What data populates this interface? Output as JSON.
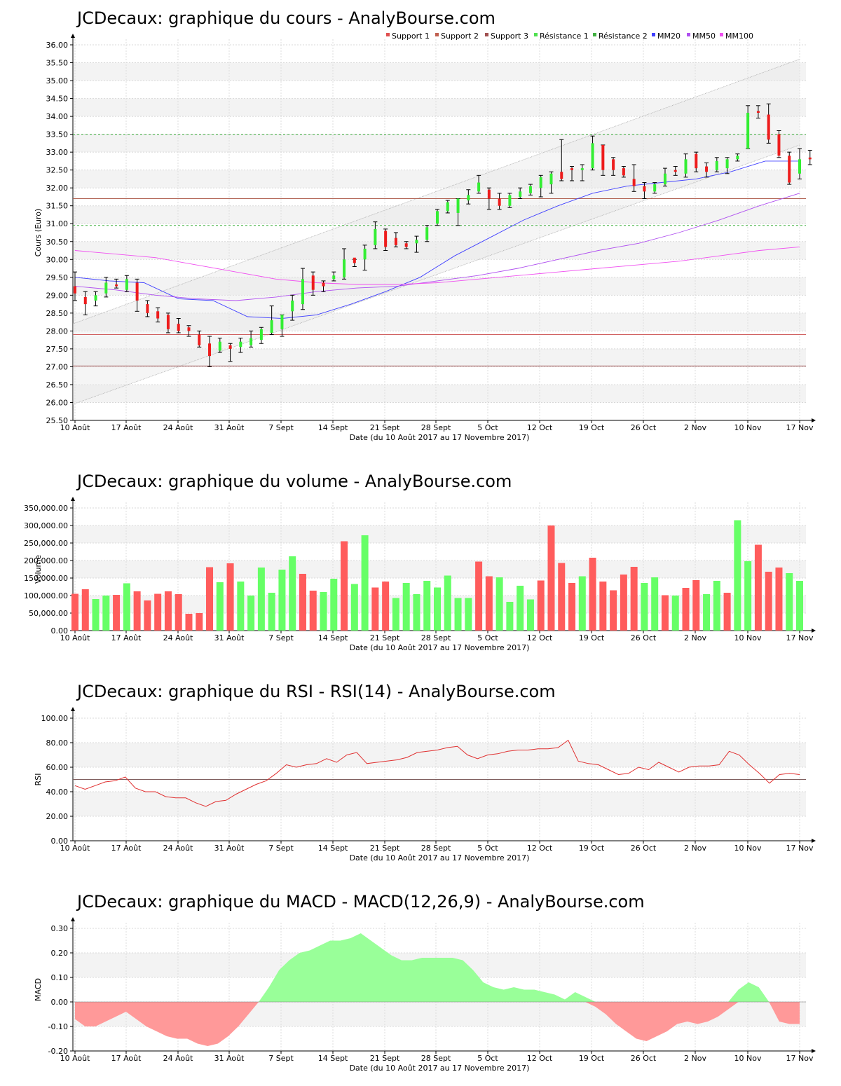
{
  "chart_data": [
    {
      "type": "candlestick",
      "title": "JCDecaux: graphique du cours - AnalyBourse.com",
      "xlabel": "Date (du 10 Août 2017 au 17 Novembre 2017)",
      "ylabel": "Cours (Euro)",
      "ylim": [
        25.5,
        36.0
      ],
      "yticks": [
        "25.50",
        "26.00",
        "26.50",
        "27.00",
        "27.50",
        "28.00",
        "28.50",
        "29.00",
        "29.50",
        "30.00",
        "30.50",
        "31.00",
        "31.50",
        "32.00",
        "32.50",
        "33.00",
        "33.50",
        "34.00",
        "34.50",
        "35.00",
        "35.50",
        "36.00"
      ],
      "xticks": [
        "10 Août",
        "17 Août",
        "24 Août",
        "31 Août",
        "7 Sept",
        "14 Sept",
        "21 Sept",
        "28 Sept",
        "5 Oct",
        "12 Oct",
        "19 Oct",
        "26 Oct",
        "2 Nov",
        "10 Nov",
        "17 Nov"
      ],
      "legend": {
        "placement": "top-right",
        "items": [
          {
            "label": "Support 1",
            "color": "#e05050"
          },
          {
            "label": "Support 2",
            "color": "#c06050"
          },
          {
            "label": "Support 3",
            "color": "#a05050"
          },
          {
            "label": "Résistance 1",
            "color": "#50e050"
          },
          {
            "label": "Résistance 2",
            "color": "#40b040"
          },
          {
            "label": "MM20",
            "color": "#4040ff"
          },
          {
            "label": "MM50",
            "color": "#b050f0"
          },
          {
            "label": "MM100",
            "color": "#f050f0"
          }
        ]
      },
      "levels": {
        "support1": 27.9,
        "support2": 27.02,
        "support3": 31.7,
        "resistance1": 30.95,
        "resistance2": 33.5
      },
      "channel": {
        "upper": [
          28.2,
          35.6
        ],
        "lower": [
          25.95,
          33.2
        ]
      },
      "candles": [
        {
          "o": 29.25,
          "c": 29.05,
          "h": 29.65,
          "l": 28.85
        },
        {
          "o": 28.95,
          "c": 28.75,
          "h": 29.1,
          "l": 28.45
        },
        {
          "o": 28.85,
          "c": 29.0,
          "h": 29.1,
          "l": 28.7
        },
        {
          "o": 29.05,
          "c": 29.35,
          "h": 29.5,
          "l": 28.95
        },
        {
          "o": 29.3,
          "c": 29.25,
          "h": 29.45,
          "l": 29.2
        },
        {
          "o": 29.15,
          "c": 29.45,
          "h": 29.55,
          "l": 29.1
        },
        {
          "o": 29.35,
          "c": 28.85,
          "h": 29.45,
          "l": 28.55
        },
        {
          "o": 28.75,
          "c": 28.5,
          "h": 28.85,
          "l": 28.4
        },
        {
          "o": 28.55,
          "c": 28.35,
          "h": 28.65,
          "l": 28.25
        },
        {
          "o": 28.45,
          "c": 28.05,
          "h": 28.5,
          "l": 27.95
        },
        {
          "o": 28.2,
          "c": 28.0,
          "h": 28.35,
          "l": 27.95
        },
        {
          "o": 28.1,
          "c": 28.0,
          "h": 28.15,
          "l": 27.85
        },
        {
          "o": 27.9,
          "c": 27.6,
          "h": 28.0,
          "l": 27.55
        },
        {
          "o": 27.65,
          "c": 27.3,
          "h": 27.85,
          "l": 27.0
        },
        {
          "o": 27.45,
          "c": 27.7,
          "h": 27.8,
          "l": 27.4
        },
        {
          "o": 27.6,
          "c": 27.5,
          "h": 27.65,
          "l": 27.15
        },
        {
          "o": 27.55,
          "c": 27.7,
          "h": 27.8,
          "l": 27.4
        },
        {
          "o": 27.6,
          "c": 27.8,
          "h": 28.0,
          "l": 27.55
        },
        {
          "o": 27.75,
          "c": 28.05,
          "h": 28.1,
          "l": 27.65
        },
        {
          "o": 27.95,
          "c": 28.3,
          "h": 28.7,
          "l": 27.9
        },
        {
          "o": 28.05,
          "c": 28.45,
          "h": 28.45,
          "l": 27.85
        },
        {
          "o": 28.55,
          "c": 28.85,
          "h": 29.0,
          "l": 28.3
        },
        {
          "o": 28.75,
          "c": 29.45,
          "h": 29.75,
          "l": 28.6
        },
        {
          "o": 29.55,
          "c": 29.15,
          "h": 29.65,
          "l": 29.0
        },
        {
          "o": 29.35,
          "c": 29.25,
          "h": 29.4,
          "l": 29.1
        },
        {
          "o": 29.45,
          "c": 29.55,
          "h": 29.65,
          "l": 29.4
        },
        {
          "o": 29.5,
          "c": 30.0,
          "h": 30.3,
          "l": 29.45
        },
        {
          "o": 30.05,
          "c": 29.9,
          "h": 30.0,
          "l": 29.8
        },
        {
          "o": 30.0,
          "c": 30.3,
          "h": 30.4,
          "l": 29.7
        },
        {
          "o": 30.4,
          "c": 30.85,
          "h": 31.05,
          "l": 30.3
        },
        {
          "o": 30.8,
          "c": 30.35,
          "h": 30.85,
          "l": 30.25
        },
        {
          "o": 30.6,
          "c": 30.4,
          "h": 30.75,
          "l": 30.35
        },
        {
          "o": 30.45,
          "c": 30.35,
          "h": 30.5,
          "l": 30.3
        },
        {
          "o": 30.45,
          "c": 30.55,
          "h": 30.65,
          "l": 30.2
        },
        {
          "o": 30.55,
          "c": 30.9,
          "h": 30.95,
          "l": 30.5
        },
        {
          "o": 31.0,
          "c": 31.35,
          "h": 31.4,
          "l": 30.95
        },
        {
          "o": 31.35,
          "c": 31.6,
          "h": 31.65,
          "l": 31.3
        },
        {
          "o": 31.3,
          "c": 31.7,
          "h": 31.7,
          "l": 30.95
        },
        {
          "o": 31.65,
          "c": 31.8,
          "h": 31.95,
          "l": 31.55
        },
        {
          "o": 31.9,
          "c": 32.15,
          "h": 32.35,
          "l": 31.85
        },
        {
          "o": 31.95,
          "c": 31.7,
          "h": 32.0,
          "l": 31.4
        },
        {
          "o": 31.7,
          "c": 31.5,
          "h": 31.85,
          "l": 31.4
        },
        {
          "o": 31.5,
          "c": 31.8,
          "h": 31.85,
          "l": 31.45
        },
        {
          "o": 31.75,
          "c": 31.9,
          "h": 32.0,
          "l": 31.7
        },
        {
          "o": 31.85,
          "c": 32.05,
          "h": 32.1,
          "l": 31.8
        },
        {
          "o": 32.0,
          "c": 32.3,
          "h": 32.35,
          "l": 31.75
        },
        {
          "o": 32.1,
          "c": 32.4,
          "h": 32.45,
          "l": 31.85
        },
        {
          "o": 32.45,
          "c": 32.25,
          "h": 33.35,
          "l": 32.2
        },
        {
          "o": 32.55,
          "c": 32.5,
          "h": 32.6,
          "l": 32.2
        },
        {
          "o": 32.5,
          "c": 32.55,
          "h": 32.65,
          "l": 32.2
        },
        {
          "o": 32.55,
          "c": 33.25,
          "h": 33.45,
          "l": 32.5
        },
        {
          "o": 33.2,
          "c": 32.5,
          "h": 33.2,
          "l": 32.35
        },
        {
          "o": 32.8,
          "c": 32.5,
          "h": 32.85,
          "l": 32.35
        },
        {
          "o": 32.55,
          "c": 32.35,
          "h": 32.6,
          "l": 32.3
        },
        {
          "o": 32.25,
          "c": 32.05,
          "h": 32.65,
          "l": 31.9
        },
        {
          "o": 32.05,
          "c": 31.9,
          "h": 32.15,
          "l": 31.7
        },
        {
          "o": 31.9,
          "c": 32.1,
          "h": 32.15,
          "l": 31.85
        },
        {
          "o": 32.1,
          "c": 32.4,
          "h": 32.55,
          "l": 32.05
        },
        {
          "o": 32.5,
          "c": 32.45,
          "h": 32.6,
          "l": 32.35
        },
        {
          "o": 32.4,
          "c": 32.8,
          "h": 32.95,
          "l": 32.3
        },
        {
          "o": 32.95,
          "c": 32.55,
          "h": 33.0,
          "l": 32.45
        },
        {
          "o": 32.6,
          "c": 32.45,
          "h": 32.7,
          "l": 32.3
        },
        {
          "o": 32.5,
          "c": 32.75,
          "h": 32.85,
          "l": 32.45
        },
        {
          "o": 32.55,
          "c": 32.8,
          "h": 32.85,
          "l": 32.4
        },
        {
          "o": 32.8,
          "c": 32.9,
          "h": 32.95,
          "l": 32.75
        },
        {
          "o": 33.1,
          "c": 34.1,
          "h": 34.3,
          "l": 33.1
        },
        {
          "o": 34.15,
          "c": 34.1,
          "h": 34.3,
          "l": 33.95
        },
        {
          "o": 34.05,
          "c": 33.35,
          "h": 34.35,
          "l": 33.25
        },
        {
          "o": 33.5,
          "c": 32.9,
          "h": 33.6,
          "l": 32.85
        },
        {
          "o": 32.9,
          "c": 32.15,
          "h": 33.0,
          "l": 32.1
        },
        {
          "o": 32.4,
          "c": 32.8,
          "h": 33.1,
          "l": 32.25
        },
        {
          "o": 32.85,
          "c": 32.8,
          "h": 33.05,
          "l": 32.65
        }
      ],
      "series": [
        {
          "name": "MM20",
          "values": [
            29.5,
            29.4,
            29.35,
            28.9,
            28.85,
            28.4,
            28.35,
            28.45,
            28.75,
            29.1,
            29.5,
            30.1,
            30.6,
            31.1,
            31.5,
            31.85,
            32.05,
            32.15,
            32.25,
            32.45,
            32.75,
            32.75
          ]
        },
        {
          "name": "MM50",
          "values": [
            29.25,
            29.15,
            29.0,
            28.9,
            28.85,
            28.95,
            29.1,
            29.2,
            29.25,
            29.4,
            29.55,
            29.75,
            30.0,
            30.25,
            30.45,
            30.75,
            31.1,
            31.5,
            31.85
          ]
        },
        {
          "name": "MM100",
          "values": [
            30.25,
            30.15,
            30.05,
            29.85,
            29.65,
            29.45,
            29.35,
            29.3,
            29.3,
            29.35,
            29.45,
            29.55,
            29.65,
            29.75,
            29.85,
            29.95,
            30.1,
            30.25,
            30.35
          ]
        }
      ]
    },
    {
      "type": "bar",
      "title": "JCDecaux: graphique du volume - AnalyBourse.com",
      "xlabel": "Date (du 10 Août 2017 au 17 Novembre 2017)",
      "ylabel": "Volume",
      "ylim": [
        0,
        350000
      ],
      "yticks": [
        "0.00",
        "50,000.00",
        "100,000.00",
        "150,000.00",
        "200,000.00",
        "250,000.00",
        "300,000.00",
        "350,000.00"
      ],
      "xticks": [
        "10 Août",
        "17 Août",
        "24 Août",
        "31 Août",
        "7 Sept",
        "14 Sept",
        "21 Sept",
        "28 Sept",
        "5 Oct",
        "12 Oct",
        "19 Oct",
        "26 Oct",
        "2 Nov",
        "10 Nov",
        "17 Nov"
      ],
      "values": [
        105000,
        118000,
        90000,
        100000,
        102000,
        135000,
        112000,
        86000,
        105000,
        112000,
        104000,
        48000,
        50000,
        181000,
        138000,
        192000,
        140000,
        100000,
        180000,
        108000,
        174000,
        212000,
        162000,
        114000,
        110000,
        148000,
        255000,
        133000,
        272000,
        123000,
        140000,
        93000,
        136000,
        104000,
        142000,
        123000,
        157000,
        93000,
        93000,
        197000,
        155000,
        152000,
        82000,
        128000,
        89000,
        143000,
        300000,
        193000,
        136000,
        155000,
        208000,
        140000,
        115000,
        160000,
        182000,
        136000,
        152000,
        101000,
        100000,
        122000,
        144000,
        104000,
        142000,
        108000,
        315000,
        198000,
        245000,
        168000,
        180000,
        164000,
        142000
      ],
      "up": [
        0,
        0,
        1,
        1,
        0,
        1,
        0,
        0,
        0,
        0,
        0,
        0,
        0,
        0,
        1,
        0,
        1,
        1,
        1,
        1,
        1,
        1,
        0,
        0,
        1,
        1,
        0,
        1,
        1,
        0,
        0,
        1,
        1,
        1,
        1,
        1,
        1,
        1,
        1,
        0,
        0,
        1,
        1,
        1,
        1,
        0,
        0,
        0,
        0,
        1,
        0,
        0,
        0,
        0,
        0,
        1,
        1,
        0,
        1,
        0,
        0,
        1,
        1,
        0,
        1,
        1,
        0,
        0,
        0,
        1,
        1
      ],
      "colors": {
        "up": "#66ff66",
        "down": "#ff5c5c"
      }
    },
    {
      "type": "line",
      "title": "JCDecaux: graphique du RSI - RSI(14) - AnalyBourse.com",
      "xlabel": "Date (du 10 Août 2017 au 17 Novembre 2017)",
      "ylabel": "RSI",
      "ylim": [
        0,
        100
      ],
      "yticks": [
        "0.00",
        "20.00",
        "40.00",
        "60.00",
        "80.00",
        "100.00"
      ],
      "xticks": [
        "10 Août",
        "17 Août",
        "24 Août",
        "31 Août",
        "7 Sept",
        "14 Sept",
        "21 Sept",
        "28 Sept",
        "5 Oct",
        "12 Oct",
        "19 Oct",
        "26 Oct",
        "2 Nov",
        "10 Nov",
        "17 Nov"
      ],
      "reference": 50,
      "values": [
        45,
        42,
        45,
        48,
        49,
        52,
        43,
        40,
        40,
        36,
        35,
        35,
        31,
        28,
        32,
        33,
        38,
        42,
        46,
        49,
        55,
        62,
        60,
        62,
        63,
        67,
        64,
        70,
        72,
        63,
        64,
        65,
        66,
        68,
        72,
        73,
        74,
        76,
        77,
        70,
        67,
        70,
        71,
        73,
        74,
        74,
        75,
        75,
        76,
        82,
        65,
        63,
        62,
        58,
        54,
        55,
        60,
        58,
        64,
        60,
        56,
        60,
        61,
        61,
        62,
        73,
        70,
        62,
        55,
        47,
        54,
        55,
        54
      ],
      "color": "#e03030"
    },
    {
      "type": "area",
      "title": "JCDecaux: graphique du MACD - MACD(12,26,9) - AnalyBourse.com",
      "xlabel": "Date (du 10 Août 2017 au 17 Novembre 2017)",
      "ylabel": "MACD",
      "ylim": [
        -0.2,
        0.3
      ],
      "yticks": [
        "-0.20",
        "-0.10",
        "0.00",
        "0.10",
        "0.20",
        "0.30"
      ],
      "xticks": [
        "10 Août",
        "17 Août",
        "24 Août",
        "31 Août",
        "7 Sept",
        "14 Sept",
        "21 Sept",
        "28 Sept",
        "5 Oct",
        "12 Oct",
        "19 Oct",
        "26 Oct",
        "2 Nov",
        "10 Nov",
        "17 Nov"
      ],
      "values": [
        -0.07,
        -0.1,
        -0.1,
        -0.08,
        -0.06,
        -0.04,
        -0.07,
        -0.1,
        -0.12,
        -0.14,
        -0.15,
        -0.15,
        -0.17,
        -0.18,
        -0.17,
        -0.14,
        -0.1,
        -0.05,
        0.0,
        0.06,
        0.13,
        0.17,
        0.2,
        0.21,
        0.23,
        0.25,
        0.25,
        0.26,
        0.28,
        0.25,
        0.22,
        0.19,
        0.17,
        0.17,
        0.18,
        0.18,
        0.18,
        0.18,
        0.17,
        0.13,
        0.08,
        0.06,
        0.05,
        0.06,
        0.05,
        0.05,
        0.04,
        0.03,
        0.01,
        0.04,
        0.02,
        -0.02,
        -0.05,
        -0.09,
        -0.12,
        -0.15,
        -0.16,
        -0.14,
        -0.12,
        -0.09,
        -0.08,
        -0.09,
        -0.08,
        -0.06,
        -0.03,
        0.05,
        0.08,
        0.06,
        0.0,
        -0.08,
        -0.09,
        -0.09
      ],
      "colors": {
        "positive": "#99ff99",
        "negative": "#ff9999"
      }
    }
  ]
}
